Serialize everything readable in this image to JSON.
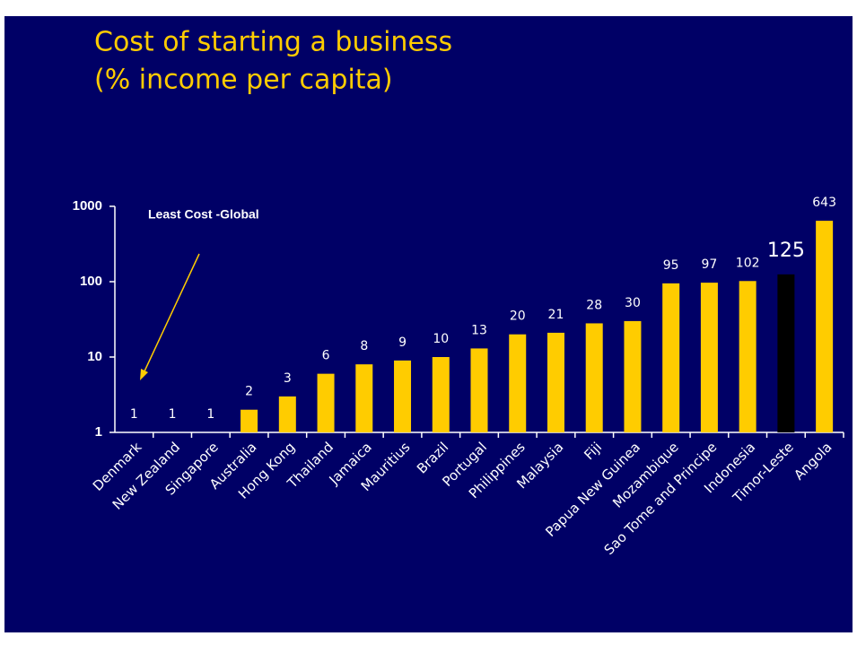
{
  "chart_data": {
    "type": "bar",
    "title": "Cost of starting a business",
    "subtitle": "(% income per capita)",
    "annotation": "Least Cost -Global",
    "categories": [
      "Denmark",
      "New Zealand",
      "Singapore",
      "Australia",
      "Hong Kong",
      "Thailand",
      "Jamaica",
      "Mauritius",
      "Brazil",
      "Portugal",
      "Philippines",
      "Malaysia",
      "Fiji",
      "Papua New Guinea",
      "Mozambique",
      "Sao Tome and Principe",
      "Indonesia",
      "Timor-Leste",
      "Angola"
    ],
    "values": [
      1,
      1,
      1,
      2,
      3,
      6,
      8,
      9,
      10,
      13,
      20,
      21,
      28,
      30,
      95,
      97,
      102,
      125,
      643
    ],
    "color": "#ffcc00",
    "colors": [
      "#ffcc00",
      "#ffcc00",
      "#ffcc00",
      "#ffcc00",
      "#ffcc00",
      "#ffcc00",
      "#ffcc00",
      "#ffcc00",
      "#ffcc00",
      "#ffcc00",
      "#ffcc00",
      "#ffcc00",
      "#ffcc00",
      "#ffcc00",
      "#ffcc00",
      "#ffcc00",
      "#ffcc00",
      "#000000",
      "#ffcc00"
    ],
    "ylim": [
      1,
      1000
    ],
    "yticks": [
      1,
      10,
      100,
      1000
    ],
    "log_scale": true,
    "grid": false
  }
}
